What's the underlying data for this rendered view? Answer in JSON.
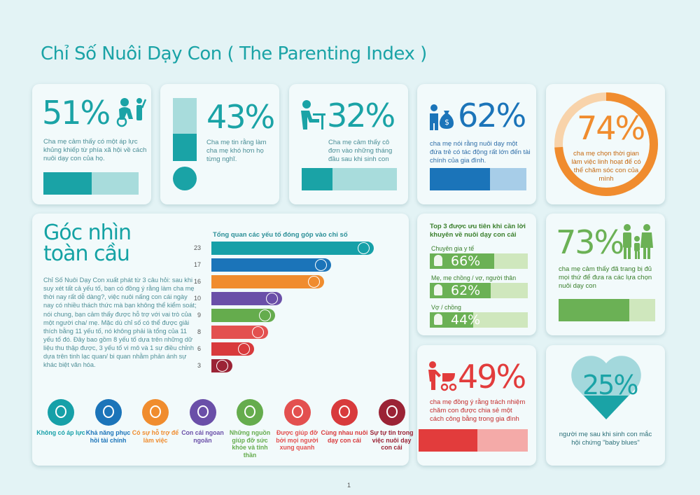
{
  "title": "Chỉ Số Nuôi Dạy Con ( The Parenting Index )",
  "page_number": "1",
  "stats": {
    "s51": {
      "value": "51%",
      "text": "Cha mẹ cảm thấy có một áp lực khủng khiếp từ phía xã hội về cách nuôi dạy con của họ.",
      "fraction": 0.51
    },
    "s43": {
      "value": "43%",
      "text": "Cha mẹ tin rằng làm cha mẹ khó hơn họ từng nghĩ.",
      "fraction": 0.43
    },
    "s32": {
      "value": "32%",
      "text": "Cha mẹ cảm thấy cô đơn vào những tháng đầu sau khi sinh con",
      "fraction": 0.32
    },
    "s62": {
      "value": "62%",
      "text": "cha mẹ nói rằng nuôi dạy một đứa trẻ có tác động rất lớn đến tài chính của gia đình.",
      "fraction": 0.62
    },
    "s74": {
      "value": "74%",
      "text": "cha mẹ chọn  thời gian làm việc linh hoạt để có thể chăm sóc con của mình",
      "fraction": 0.74
    },
    "s73": {
      "value": "73%",
      "text": "cha mẹ cảm thấy đã trang bị đủ mọi thứ để đưa ra các lựa chọn nuôi dạy con",
      "fraction": 0.73
    },
    "s49": {
      "value": "49%",
      "text": "cha mẹ đồng ý rằng trách nhiệm chăm con được chia sẻ một cách công bằng trong gia đình",
      "fraction": 0.49
    },
    "s25": {
      "value": "25%",
      "text": "người mẹ sau khi sinh con mắc hội chứng \"baby blues\"",
      "fraction": 0.25
    }
  },
  "global": {
    "title_line1": "Góc nhìn",
    "title_line2": "toàn cầu",
    "text": "Chỉ Số Nuôi Dạy Con xuất phát từ 3 câu hỏi: sau khi suy xét tất cả yếu tố, bạn có đồng ý rằng làm cha mẹ thời nay rất dễ dàng?, việc nuôi nấng con cái ngày nay có nhiều thách thức mà bạn không thể kiểm soát; nói chung, bạn cảm thấy được hỗ trợ với vai trò của một người cha/ mẹ. Mặc dù chỉ số có thể được giải thích bằng 11 yếu tố, nó không phải là tổng của 11 yếu tố đó. Đây bao gồm 8 yếu tố dựa trên những dữ liệu thu thập được, 3 yếu tố vì mô và 1 sự điều chỉnh dựa trên tinh lạc quan/ bi quan nhằm phản ánh sự khác biệt văn hóa."
  },
  "chart_data": {
    "type": "bar",
    "orientation": "horizontal",
    "title": "Tổng quan các yếu tố đóng góp vào chỉ số",
    "values": [
      23,
      17,
      16,
      10,
      9,
      8,
      6,
      3
    ],
    "colors": [
      "#16a0a8",
      "#1b74b9",
      "#f08c2e",
      "#6a4fa8",
      "#65ac4d",
      "#e3504f",
      "#d83a3c",
      "#9b2335"
    ],
    "xlim": [
      0,
      23
    ]
  },
  "factors": [
    {
      "label": "Không có áp lực",
      "color": "#16a0a8"
    },
    {
      "label": "Khả năng phục hồi tài chính",
      "color": "#1b74b9"
    },
    {
      "label": "Có sự hỗ trợ để làm việc",
      "color": "#f08c2e"
    },
    {
      "label": "Con cái ngoan ngoãn",
      "color": "#6a4fa8"
    },
    {
      "label": "Những nguồn giúp đỡ sức khỏe và tinh thần",
      "color": "#65ac4d"
    },
    {
      "label": "Được giúp đỡ bởi mọi người xung quanh",
      "color": "#e3504f"
    },
    {
      "label": "Cùng nhau nuôi dạy con cái",
      "color": "#d83a3c"
    },
    {
      "label": "Sự tự tin trong việc nuôi dạy con cái",
      "color": "#9b2335"
    }
  ],
  "priorities": {
    "title": "Top 3 được ưu tiên khi cần lời khuyên về nuôi dạy con cái",
    "items": [
      {
        "label": "Chuyên gia y tế",
        "value": "66%",
        "fraction": 0.66
      },
      {
        "label": "Mẹ, mẹ chồng / vợ, người thân",
        "value": "62%",
        "fraction": 0.62
      },
      {
        "label": "Vợ / chồng",
        "value": "44%",
        "fraction": 0.44
      }
    ]
  },
  "colors": {
    "teal": "#1aa3a6",
    "blue": "#1b74b9",
    "orange": "#f08c2e",
    "green": "#6bb155",
    "red": "#e23c3c"
  }
}
